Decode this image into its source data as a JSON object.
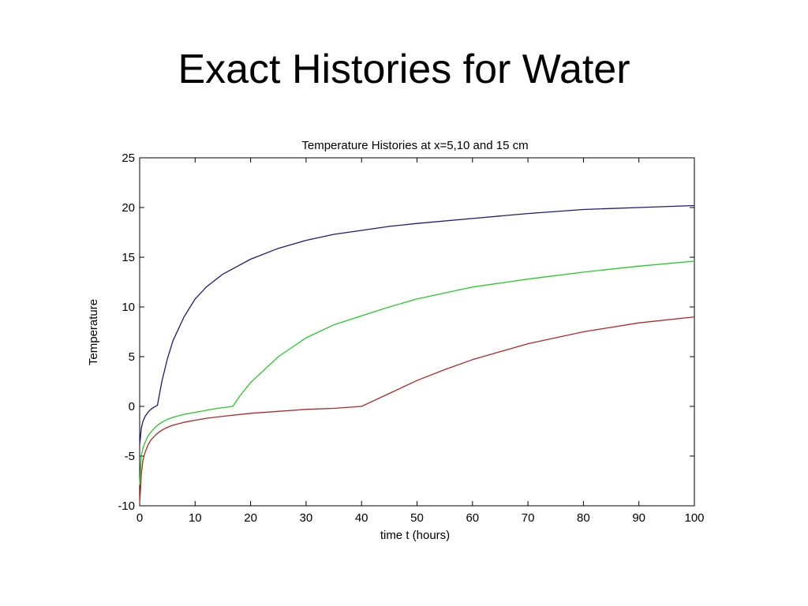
{
  "slide": {
    "title": "Exact Histories for Water"
  },
  "chart_data": {
    "type": "line",
    "title": "Temperature Histories at x=5,10 and 15 cm",
    "xlabel": "time t (hours)",
    "ylabel": "Temperature",
    "xlim": [
      0,
      100
    ],
    "ylim": [
      -10,
      25
    ],
    "xticks": [
      0,
      10,
      20,
      30,
      40,
      50,
      60,
      70,
      80,
      90,
      100
    ],
    "yticks": [
      -10,
      -5,
      0,
      5,
      10,
      15,
      20,
      25
    ],
    "grid": false,
    "legend": "none",
    "series": [
      {
        "color": "#1a1a7a",
        "x": [
          0,
          0.3,
          0.6,
          1,
          1.5,
          2,
          2.5,
          3.2,
          4,
          5,
          6,
          8,
          10,
          12,
          15,
          18,
          20,
          25,
          30,
          35,
          40,
          45,
          50,
          60,
          70,
          80,
          90,
          100
        ],
        "y": [
          -3.9,
          -2.2,
          -1.5,
          -1.0,
          -0.6,
          -0.3,
          -0.1,
          0.1,
          2.5,
          4.8,
          6.6,
          9.0,
          10.8,
          12.0,
          13.3,
          14.2,
          14.8,
          15.9,
          16.7,
          17.3,
          17.7,
          18.1,
          18.4,
          18.9,
          19.4,
          19.8,
          20.0,
          20.2
        ]
      },
      {
        "color": "#22cc22",
        "x": [
          0,
          0.3,
          0.6,
          1,
          1.5,
          2,
          3,
          4,
          5,
          6,
          8,
          10,
          12,
          14,
          16.8,
          18,
          20,
          25,
          30,
          35,
          40,
          45,
          50,
          60,
          70,
          80,
          90,
          100
        ],
        "y": [
          -7.9,
          -5.0,
          -4.2,
          -3.6,
          -3.0,
          -2.6,
          -2.0,
          -1.6,
          -1.3,
          -1.1,
          -0.8,
          -0.6,
          -0.4,
          -0.2,
          0.0,
          1.0,
          2.4,
          5.0,
          6.9,
          8.2,
          9.1,
          10.0,
          10.8,
          12.0,
          12.8,
          13.5,
          14.1,
          14.6
        ]
      },
      {
        "color": "#b32626",
        "x": [
          0,
          0.3,
          0.6,
          1,
          1.5,
          2,
          3,
          4,
          5,
          6,
          8,
          10,
          12,
          15,
          20,
          25,
          30,
          35,
          40,
          45,
          50,
          55,
          60,
          70,
          80,
          90,
          100
        ],
        "y": [
          -9.8,
          -6.8,
          -5.4,
          -4.6,
          -3.9,
          -3.4,
          -2.8,
          -2.4,
          -2.1,
          -1.9,
          -1.6,
          -1.4,
          -1.2,
          -1.0,
          -0.7,
          -0.5,
          -0.3,
          -0.2,
          0.0,
          1.3,
          2.6,
          3.7,
          4.7,
          6.3,
          7.5,
          8.4,
          9.0
        ]
      }
    ]
  }
}
